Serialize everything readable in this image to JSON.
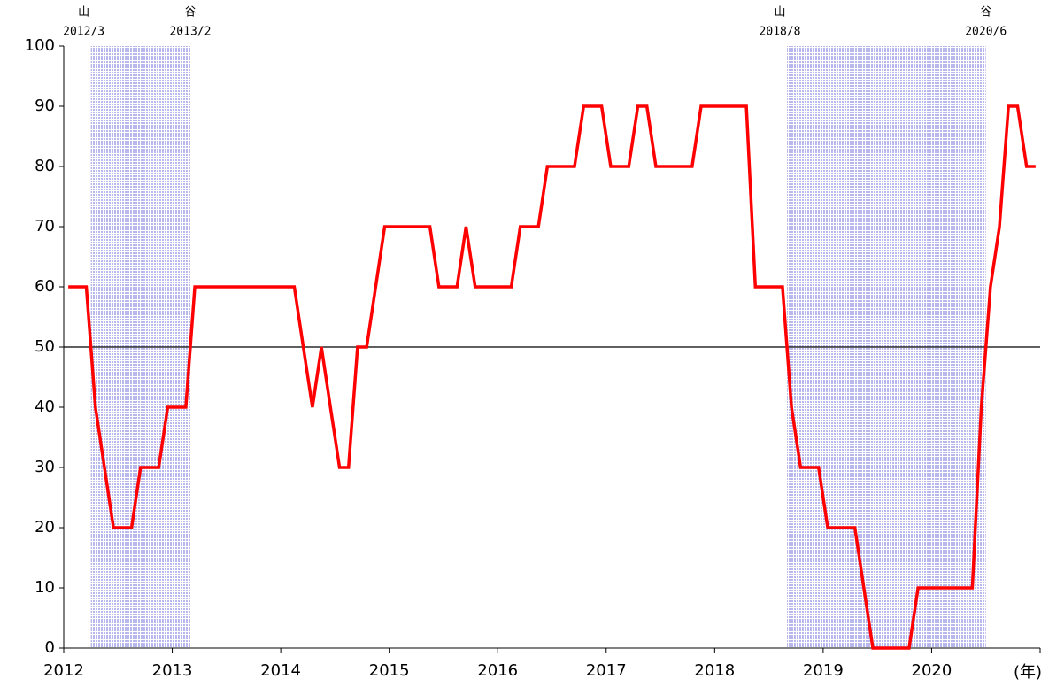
{
  "chart_data": {
    "type": "line",
    "x": [
      2012.042,
      2012.125,
      2012.208,
      2012.292,
      2012.375,
      2012.458,
      2012.542,
      2012.625,
      2012.708,
      2012.792,
      2012.875,
      2012.958,
      2013.042,
      2013.125,
      2013.208,
      2013.292,
      2013.375,
      2013.458,
      2013.542,
      2013.625,
      2013.708,
      2013.792,
      2013.875,
      2013.958,
      2014.042,
      2014.125,
      2014.208,
      2014.292,
      2014.375,
      2014.458,
      2014.542,
      2014.625,
      2014.708,
      2014.792,
      2014.875,
      2014.958,
      2015.042,
      2015.125,
      2015.208,
      2015.292,
      2015.375,
      2015.458,
      2015.542,
      2015.625,
      2015.708,
      2015.792,
      2015.875,
      2015.958,
      2016.042,
      2016.125,
      2016.208,
      2016.292,
      2016.375,
      2016.458,
      2016.542,
      2016.625,
      2016.708,
      2016.792,
      2016.875,
      2016.958,
      2017.042,
      2017.125,
      2017.208,
      2017.292,
      2017.375,
      2017.458,
      2017.542,
      2017.625,
      2017.708,
      2017.792,
      2017.875,
      2017.958,
      2018.042,
      2018.125,
      2018.208,
      2018.292,
      2018.375,
      2018.458,
      2018.542,
      2018.625,
      2018.708,
      2018.792,
      2018.875,
      2018.958,
      2019.042,
      2019.125,
      2019.208,
      2019.292,
      2019.375,
      2019.458,
      2019.542,
      2019.625,
      2019.708,
      2019.792,
      2019.875,
      2019.958,
      2020.042,
      2020.125,
      2020.208,
      2020.292,
      2020.375,
      2020.458,
      2020.542,
      2020.625,
      2020.708,
      2020.792,
      2020.875,
      2020.958
    ],
    "series": [
      {
        "color": "#ff0000",
        "values": [
          60,
          60,
          60,
          40,
          30,
          20,
          20,
          20,
          30,
          30,
          30,
          40,
          40,
          40,
          60,
          60,
          60,
          60,
          60,
          60,
          60,
          60,
          60,
          60,
          60,
          60,
          50,
          40,
          50,
          40,
          30,
          30,
          50,
          50,
          60,
          70,
          70,
          70,
          70,
          70,
          70,
          60,
          60,
          60,
          70,
          60,
          60,
          60,
          60,
          60,
          70,
          70,
          70,
          80,
          80,
          80,
          80,
          90,
          90,
          90,
          80,
          80,
          80,
          90,
          90,
          80,
          80,
          80,
          80,
          80,
          90,
          90,
          90,
          90,
          90,
          90,
          60,
          60,
          60,
          60,
          40,
          30,
          30,
          30,
          20,
          20,
          20,
          20,
          10,
          0,
          0,
          0,
          0,
          0,
          10,
          10,
          10,
          10,
          10,
          10,
          10,
          40,
          60,
          70,
          90,
          90,
          80,
          80
        ]
      }
    ],
    "xlim": [
      2012,
      2021
    ],
    "xticks": [
      2012,
      2013,
      2014,
      2015,
      2016,
      2017,
      2018,
      2019,
      2020
    ],
    "x_label": "(年)",
    "ylim": [
      0,
      100
    ],
    "yticks": [
      0,
      10,
      20,
      30,
      40,
      50,
      60,
      70,
      80,
      90,
      100
    ],
    "reference_line": 50,
    "shaded_periods": [
      {
        "start_label": "山",
        "start": "2012/3",
        "end_label": "谷",
        "end": "2013/2"
      },
      {
        "start_label": "山",
        "start": "2018/8",
        "end_label": "谷",
        "end": "2020/6"
      }
    ],
    "shade_color": "#b8b8ec"
  }
}
